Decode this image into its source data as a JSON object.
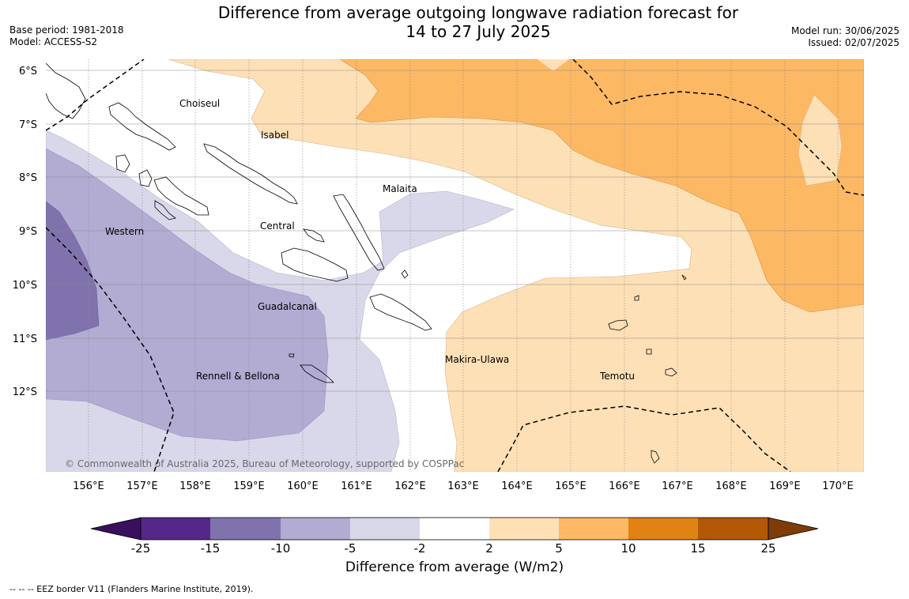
{
  "title": {
    "line1": "Difference from average outgoing longwave radiation forecast for",
    "line2": "14 to 27 July 2025"
  },
  "meta_left": {
    "base_period": "Base period: 1981-2018",
    "model": "Model: ACCESS-S2"
  },
  "meta_right": {
    "model_run": "Model run: 30/06/2025",
    "issued": "Issued: 02/07/2025"
  },
  "map": {
    "lat_labels": [
      "6°S",
      "7°S",
      "8°S",
      "9°S",
      "10°S",
      "11°S",
      "12°S"
    ],
    "lon_labels": [
      "156°E",
      "157°E",
      "158°E",
      "159°E",
      "160°E",
      "161°E",
      "162°E",
      "163°E",
      "164°E",
      "165°E",
      "166°E",
      "167°E",
      "168°E",
      "169°E",
      "170°E"
    ],
    "region_labels": [
      "Choiseul",
      "Isabel",
      "Malaita",
      "Western",
      "Central",
      "Guadalcanal",
      "Rennell & Bellona",
      "Makira-Ulawa",
      "Temotu"
    ],
    "copyright": "© Commonwealth of Australia 2025, Bureau of Meteorology, supported by COSPPac",
    "colors": {
      "neg_15_10": "#8073ad",
      "neg_10_5": "#b2abd2",
      "neg_5_2": "#d8d8ea",
      "pos_2_5": "#fee0b6",
      "pos_5_10": "#fdb863",
      "land_outline": "#000000"
    }
  },
  "colorbar": {
    "ticks": [
      "-25",
      "-15",
      "-10",
      "-5",
      "-2",
      "2",
      "5",
      "10",
      "15",
      "25"
    ],
    "colors": [
      "#3a0f5e",
      "#542788",
      "#8073ad",
      "#b2abd2",
      "#d8d8ea",
      "#ffffff",
      "#fee0b6",
      "#fdb863",
      "#e08214",
      "#b35806",
      "#7f3b08"
    ],
    "label": "Difference from average (W/m2)"
  },
  "footer": "--  --  -- EEZ border V11 (Flanders Marine Institute, 2019)."
}
